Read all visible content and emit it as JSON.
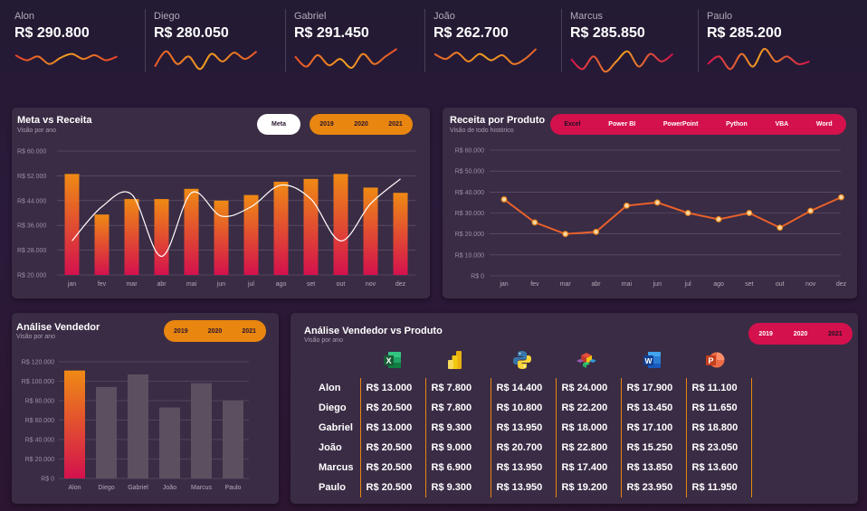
{
  "kpis": [
    {
      "name": "Alon",
      "value": "R$ 290.800"
    },
    {
      "name": "Diego",
      "value": "R$ 280.050"
    },
    {
      "name": "Gabriel",
      "value": "R$ 291.450"
    },
    {
      "name": "João",
      "value": "R$ 262.700"
    },
    {
      "name": "Marcus",
      "value": "R$ 285.850"
    },
    {
      "name": "Paulo",
      "value": "R$ 285.200"
    }
  ],
  "meta_receita": {
    "title": "Meta vs Receita",
    "subtitle": "Visão por ano",
    "meta_label": "Meta",
    "years": [
      "2019",
      "2020",
      "2021"
    ]
  },
  "receita_produto": {
    "title": "Receita por Produto",
    "subtitle": "Visão de todo histórico",
    "products": [
      "Excel",
      "Power BI",
      "PowerPoint",
      "Python",
      "VBA",
      "Word"
    ]
  },
  "analise_vendedor": {
    "title": "Análise Vendedor",
    "subtitle": "Visão por ano",
    "years": [
      "2019",
      "2020",
      "2021"
    ]
  },
  "vendedor_produto": {
    "title": "Análise Vendedor vs Produto",
    "subtitle": "Visão por ano",
    "years": [
      "2019",
      "2020",
      "2021"
    ],
    "icons": [
      "excel-icon",
      "power-bi-icon",
      "python-icon",
      "vba-icon",
      "word-icon",
      "powerpoint-icon"
    ],
    "rows": [
      {
        "name": "Alon",
        "values": [
          "R$ 13.000",
          "R$ 7.800",
          "R$ 14.400",
          "R$ 24.000",
          "R$ 17.900",
          "R$ 11.100"
        ]
      },
      {
        "name": "Diego",
        "values": [
          "R$ 20.500",
          "R$ 7.800",
          "R$ 10.800",
          "R$ 22.200",
          "R$ 13.450",
          "R$ 11.650"
        ]
      },
      {
        "name": "Gabriel",
        "values": [
          "R$ 13.000",
          "R$ 9.300",
          "R$ 13.950",
          "R$ 18.000",
          "R$ 17.100",
          "R$ 18.800"
        ]
      },
      {
        "name": "João",
        "values": [
          "R$ 20.500",
          "R$ 9.000",
          "R$ 20.700",
          "R$ 22.800",
          "R$ 15.250",
          "R$ 23.050"
        ]
      },
      {
        "name": "Marcus",
        "values": [
          "R$ 20.500",
          "R$ 6.900",
          "R$ 13.950",
          "R$ 17.400",
          "R$ 13.850",
          "R$ 13.600"
        ]
      },
      {
        "name": "Paulo",
        "values": [
          "R$ 20.500",
          "R$ 9.300",
          "R$ 13.950",
          "R$ 19.200",
          "R$ 23.950",
          "R$ 11.950"
        ]
      }
    ]
  },
  "colors": {
    "orange": "#e8860f",
    "pink": "#d4114d",
    "card": "#3a2c45"
  },
  "chart_data": [
    {
      "type": "bar",
      "categories": [
        "jan",
        "fev",
        "mar",
        "abr",
        "mai",
        "jun",
        "jul",
        "ago",
        "set",
        "out",
        "nov",
        "dez"
      ],
      "series": [
        {
          "name": "Receita",
          "type": "bar",
          "values": [
            52600,
            39500,
            44500,
            44500,
            47800,
            44000,
            45800,
            50100,
            51000,
            52600,
            48200,
            46500
          ]
        },
        {
          "name": "Meta",
          "type": "line",
          "values": [
            31000,
            42000,
            46000,
            26000,
            46500,
            39000,
            42000,
            49000,
            44500,
            31000,
            43000,
            51000
          ]
        }
      ],
      "ylim": [
        20000,
        60000
      ],
      "yticks": [
        "R$ 20.000",
        "R$ 28.000",
        "R$ 36.000",
        "R$ 44.000",
        "R$ 52.000",
        "R$ 60.000"
      ],
      "ytick_values": [
        20000,
        28000,
        36000,
        44000,
        52000,
        60000
      ],
      "grid": true
    },
    {
      "type": "line",
      "categories": [
        "jan",
        "fev",
        "mar",
        "abr",
        "mai",
        "jun",
        "jul",
        "ago",
        "set",
        "out",
        "nov",
        "dez"
      ],
      "values": [
        36500,
        25500,
        20000,
        21000,
        33500,
        35000,
        30000,
        27000,
        30000,
        23000,
        31000,
        37500
      ],
      "ylim": [
        0,
        60000
      ],
      "yticks": [
        "R$ 0",
        "R$ 10.000",
        "R$ 20.000",
        "R$ 30.000",
        "R$ 40.000",
        "R$ 50.000",
        "R$ 60.000"
      ],
      "ytick_values": [
        0,
        10000,
        20000,
        30000,
        40000,
        50000,
        60000
      ],
      "grid": true
    },
    {
      "type": "bar",
      "categories": [
        "Alon",
        "Diego",
        "Gabriel",
        "João",
        "Marcus",
        "Paulo"
      ],
      "values": [
        111000,
        94000,
        107000,
        73000,
        98000,
        80000
      ],
      "highlight": "Alon",
      "ylim": [
        0,
        120000
      ],
      "yticks": [
        "R$ 0",
        "R$ 20.000",
        "R$ 40.000",
        "R$ 60.000",
        "R$ 80.000",
        "R$ 100.000",
        "R$ 120.000"
      ],
      "ytick_values": [
        0,
        20000,
        40000,
        60000,
        80000,
        100000,
        120000
      ],
      "grid": true
    }
  ]
}
